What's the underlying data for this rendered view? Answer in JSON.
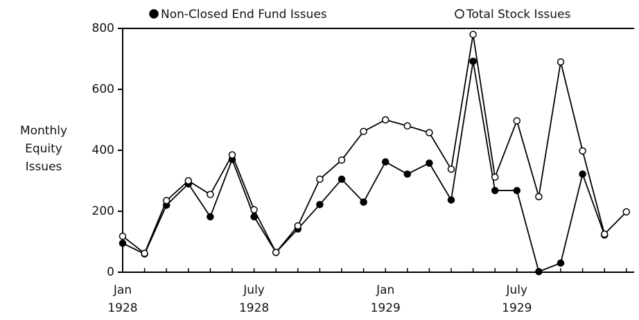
{
  "chart_data": {
    "type": "line",
    "ylabel": "Monthly Equity Issues",
    "categories": [
      "Jan 1928",
      null,
      null,
      null,
      null,
      null,
      "July 1928",
      null,
      null,
      null,
      null,
      null,
      "Jan 1929",
      null,
      null,
      null,
      null,
      null,
      "July 1929",
      null,
      null,
      null,
      null,
      null
    ],
    "series": [
      {
        "name": "Non-Closed End Fund Issues",
        "color": "#000000",
        "marker": "filled",
        "values": [
          95,
          60,
          220,
          290,
          182,
          370,
          182,
          65,
          142,
          222,
          305,
          230,
          362,
          322,
          358,
          237,
          692,
          268,
          268,
          2,
          30,
          322,
          122,
          null
        ]
      },
      {
        "name": "Total Stock Issues",
        "color": "#000000",
        "marker": "open",
        "values": [
          118,
          62,
          235,
          300,
          255,
          385,
          205,
          65,
          152,
          305,
          368,
          462,
          500,
          480,
          458,
          338,
          780,
          312,
          497,
          248,
          690,
          398,
          125,
          198
        ]
      }
    ],
    "ylim": [
      0,
      800
    ],
    "yticks": [
      0,
      200,
      400,
      600,
      800
    ],
    "grid": false
  }
}
